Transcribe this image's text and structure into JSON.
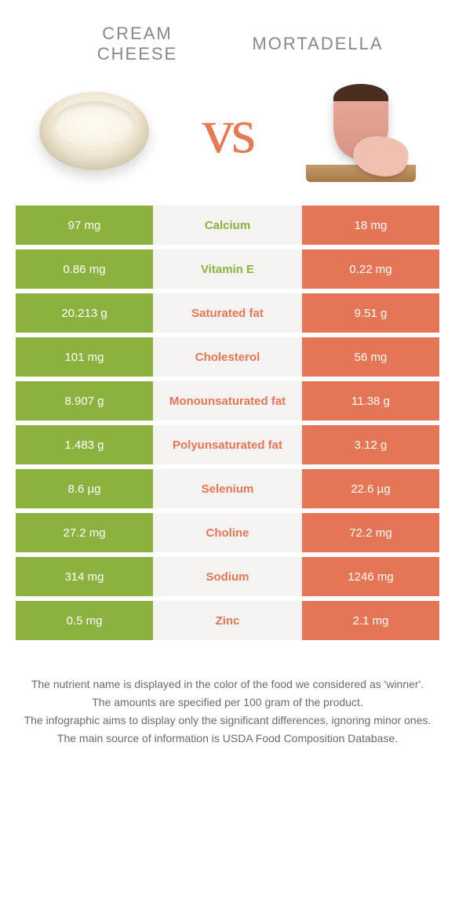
{
  "header": {
    "left_line1": "Cream",
    "left_line2": "cheese",
    "right": "Mortadella"
  },
  "vs_label": "vs",
  "colors": {
    "left_bg": "#8bb23f",
    "right_bg": "#e57655",
    "mid_bg": "#f4f3f1",
    "green_text": "#8bb23f",
    "orange_text": "#e57655",
    "vs_text": "#e67a53"
  },
  "rows": [
    {
      "nutrient": "Calcium",
      "winner": "left",
      "left": "97 mg",
      "right": "18 mg"
    },
    {
      "nutrient": "Vitamin E",
      "winner": "left",
      "left": "0.86 mg",
      "right": "0.22 mg"
    },
    {
      "nutrient": "Saturated fat",
      "winner": "right",
      "left": "20.213 g",
      "right": "9.51 g"
    },
    {
      "nutrient": "Cholesterol",
      "winner": "right",
      "left": "101 mg",
      "right": "56 mg"
    },
    {
      "nutrient": "Monounsaturated fat",
      "winner": "right",
      "left": "8.907 g",
      "right": "11.38 g"
    },
    {
      "nutrient": "Polyunsaturated fat",
      "winner": "right",
      "left": "1.483 g",
      "right": "3.12 g"
    },
    {
      "nutrient": "Selenium",
      "winner": "right",
      "left": "8.6 µg",
      "right": "22.6 µg"
    },
    {
      "nutrient": "Choline",
      "winner": "right",
      "left": "27.2 mg",
      "right": "72.2 mg"
    },
    {
      "nutrient": "Sodium",
      "winner": "right",
      "left": "314 mg",
      "right": "1246 mg"
    },
    {
      "nutrient": "Zinc",
      "winner": "right",
      "left": "0.5 mg",
      "right": "2.1 mg"
    }
  ],
  "footer": {
    "line1": "The nutrient name is displayed in the color of the food we considered as 'winner'.",
    "line2": "The amounts are specified per 100 gram of the product.",
    "line3": "The infographic aims to display only the significant differences, ignoring minor ones.",
    "line4": "The main source of information is USDA Food Composition Database."
  }
}
